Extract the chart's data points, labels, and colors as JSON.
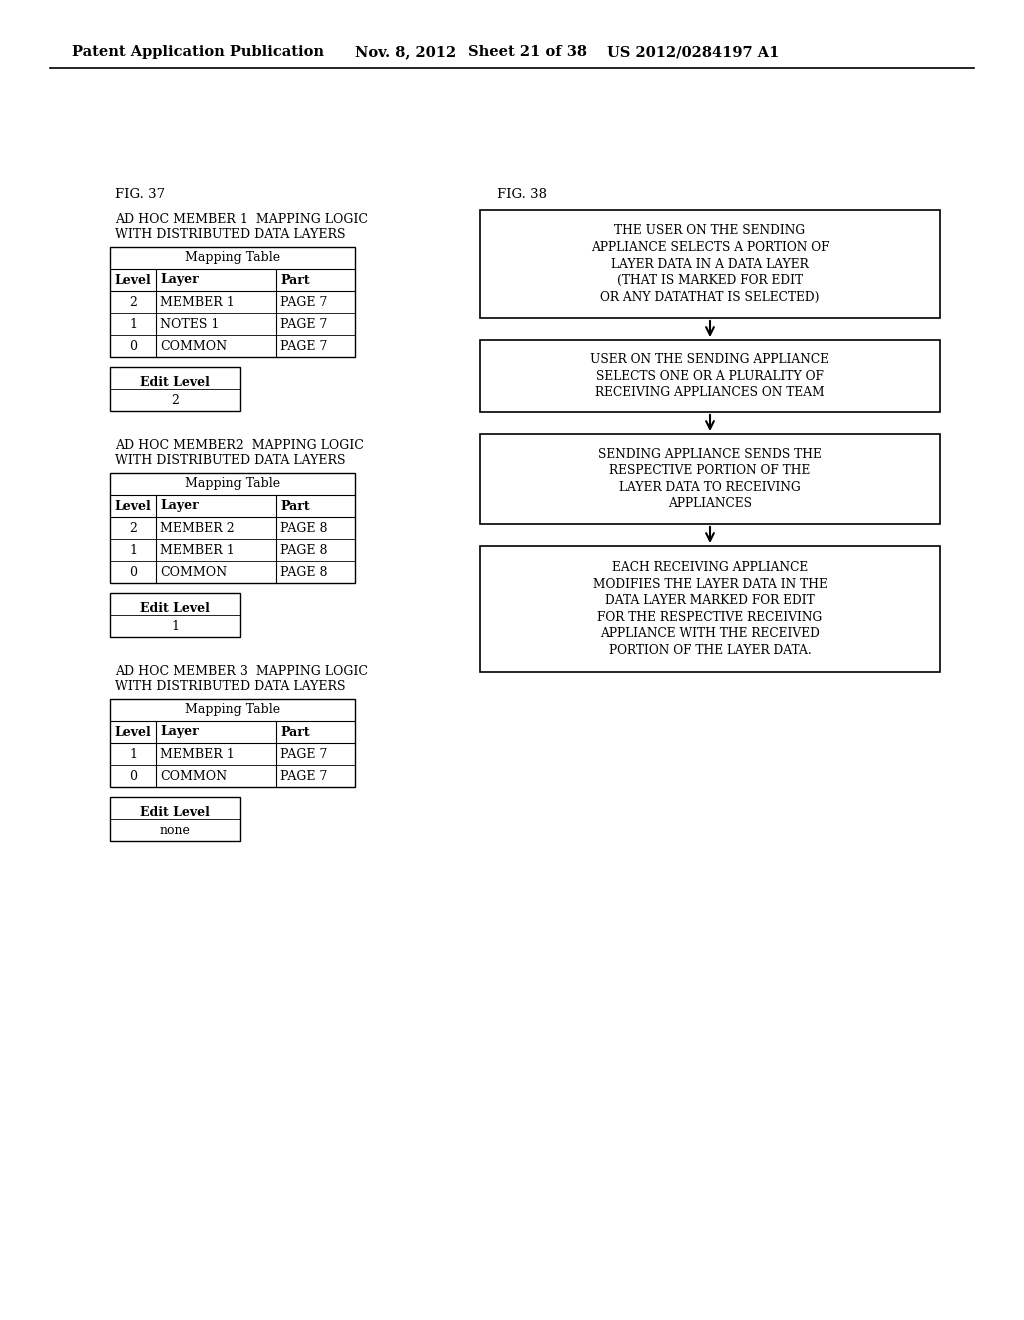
{
  "bg_color": "#ffffff",
  "header_text": "Patent Application Publication",
  "header_date": "Nov. 8, 2012",
  "header_sheet": "Sheet 21 of 38",
  "header_patent": "US 2012/0284197 A1",
  "fig37_label": "FIG. 37",
  "fig38_label": "FIG. 38",
  "member1_title_line1": "AD HOC MEMBER 1  MAPPING LOGIC",
  "member1_title_line2": "WITH DISTRIBUTED DATA LAYERS",
  "member2_title_line1": "AD HOC MEMBER2  MAPPING LOGIC",
  "member2_title_line2": "WITH DISTRIBUTED DATA LAYERS",
  "member3_title_line1": "AD HOC MEMBER 3  MAPPING LOGIC",
  "member3_title_line2": "WITH DISTRIBUTED DATA LAYERS",
  "mapping_table_title": "Mapping Table",
  "table_headers": [
    "Level",
    "Layer",
    "Part"
  ],
  "table1_rows": [
    [
      "2",
      "MEMBER 1",
      "PAGE 7"
    ],
    [
      "1",
      "NOTES 1",
      "PAGE 7"
    ],
    [
      "0",
      "COMMON",
      "PAGE 7"
    ]
  ],
  "table2_rows": [
    [
      "2",
      "MEMBER 2",
      "PAGE 8"
    ],
    [
      "1",
      "MEMBER 1",
      "PAGE 8"
    ],
    [
      "0",
      "COMMON",
      "PAGE 8"
    ]
  ],
  "table3_rows": [
    [
      "1",
      "MEMBER 1",
      "PAGE 7"
    ],
    [
      "0",
      "COMMON",
      "PAGE 7"
    ]
  ],
  "edit_level_label": "Edit Level",
  "edit1_value": "2",
  "edit2_value": "1",
  "edit3_value": "none",
  "flow_box1": "THE USER ON THE SENDING\nAPPLIANCE SELECTS A PORTION OF\nLAYER DATA IN A DATA LAYER\n(THAT IS MARKED FOR EDIT\nOR ANY DATATHAT IS SELECTED)",
  "flow_box2": "USER ON THE SENDING APPLIANCE\nSELECTS ONE OR A PLURALITY OF\nRECEIVING APPLIANCES ON TEAM",
  "flow_box3": "SENDING APPLIANCE SENDS THE\nRESPECTIVE PORTION OF THE\nLAYER DATA TO RECEIVING\nAPPLIANCES",
  "flow_box4": "EACH RECEIVING APPLIANCE\nMODIFIES THE LAYER DATA IN THE\nDATA LAYER MARKED FOR EDIT\nFOR THE RESPECTIVE RECEIVING\nAPPLIANCE WITH THE RECEIVED\nPORTION OF THE LAYER DATA."
}
